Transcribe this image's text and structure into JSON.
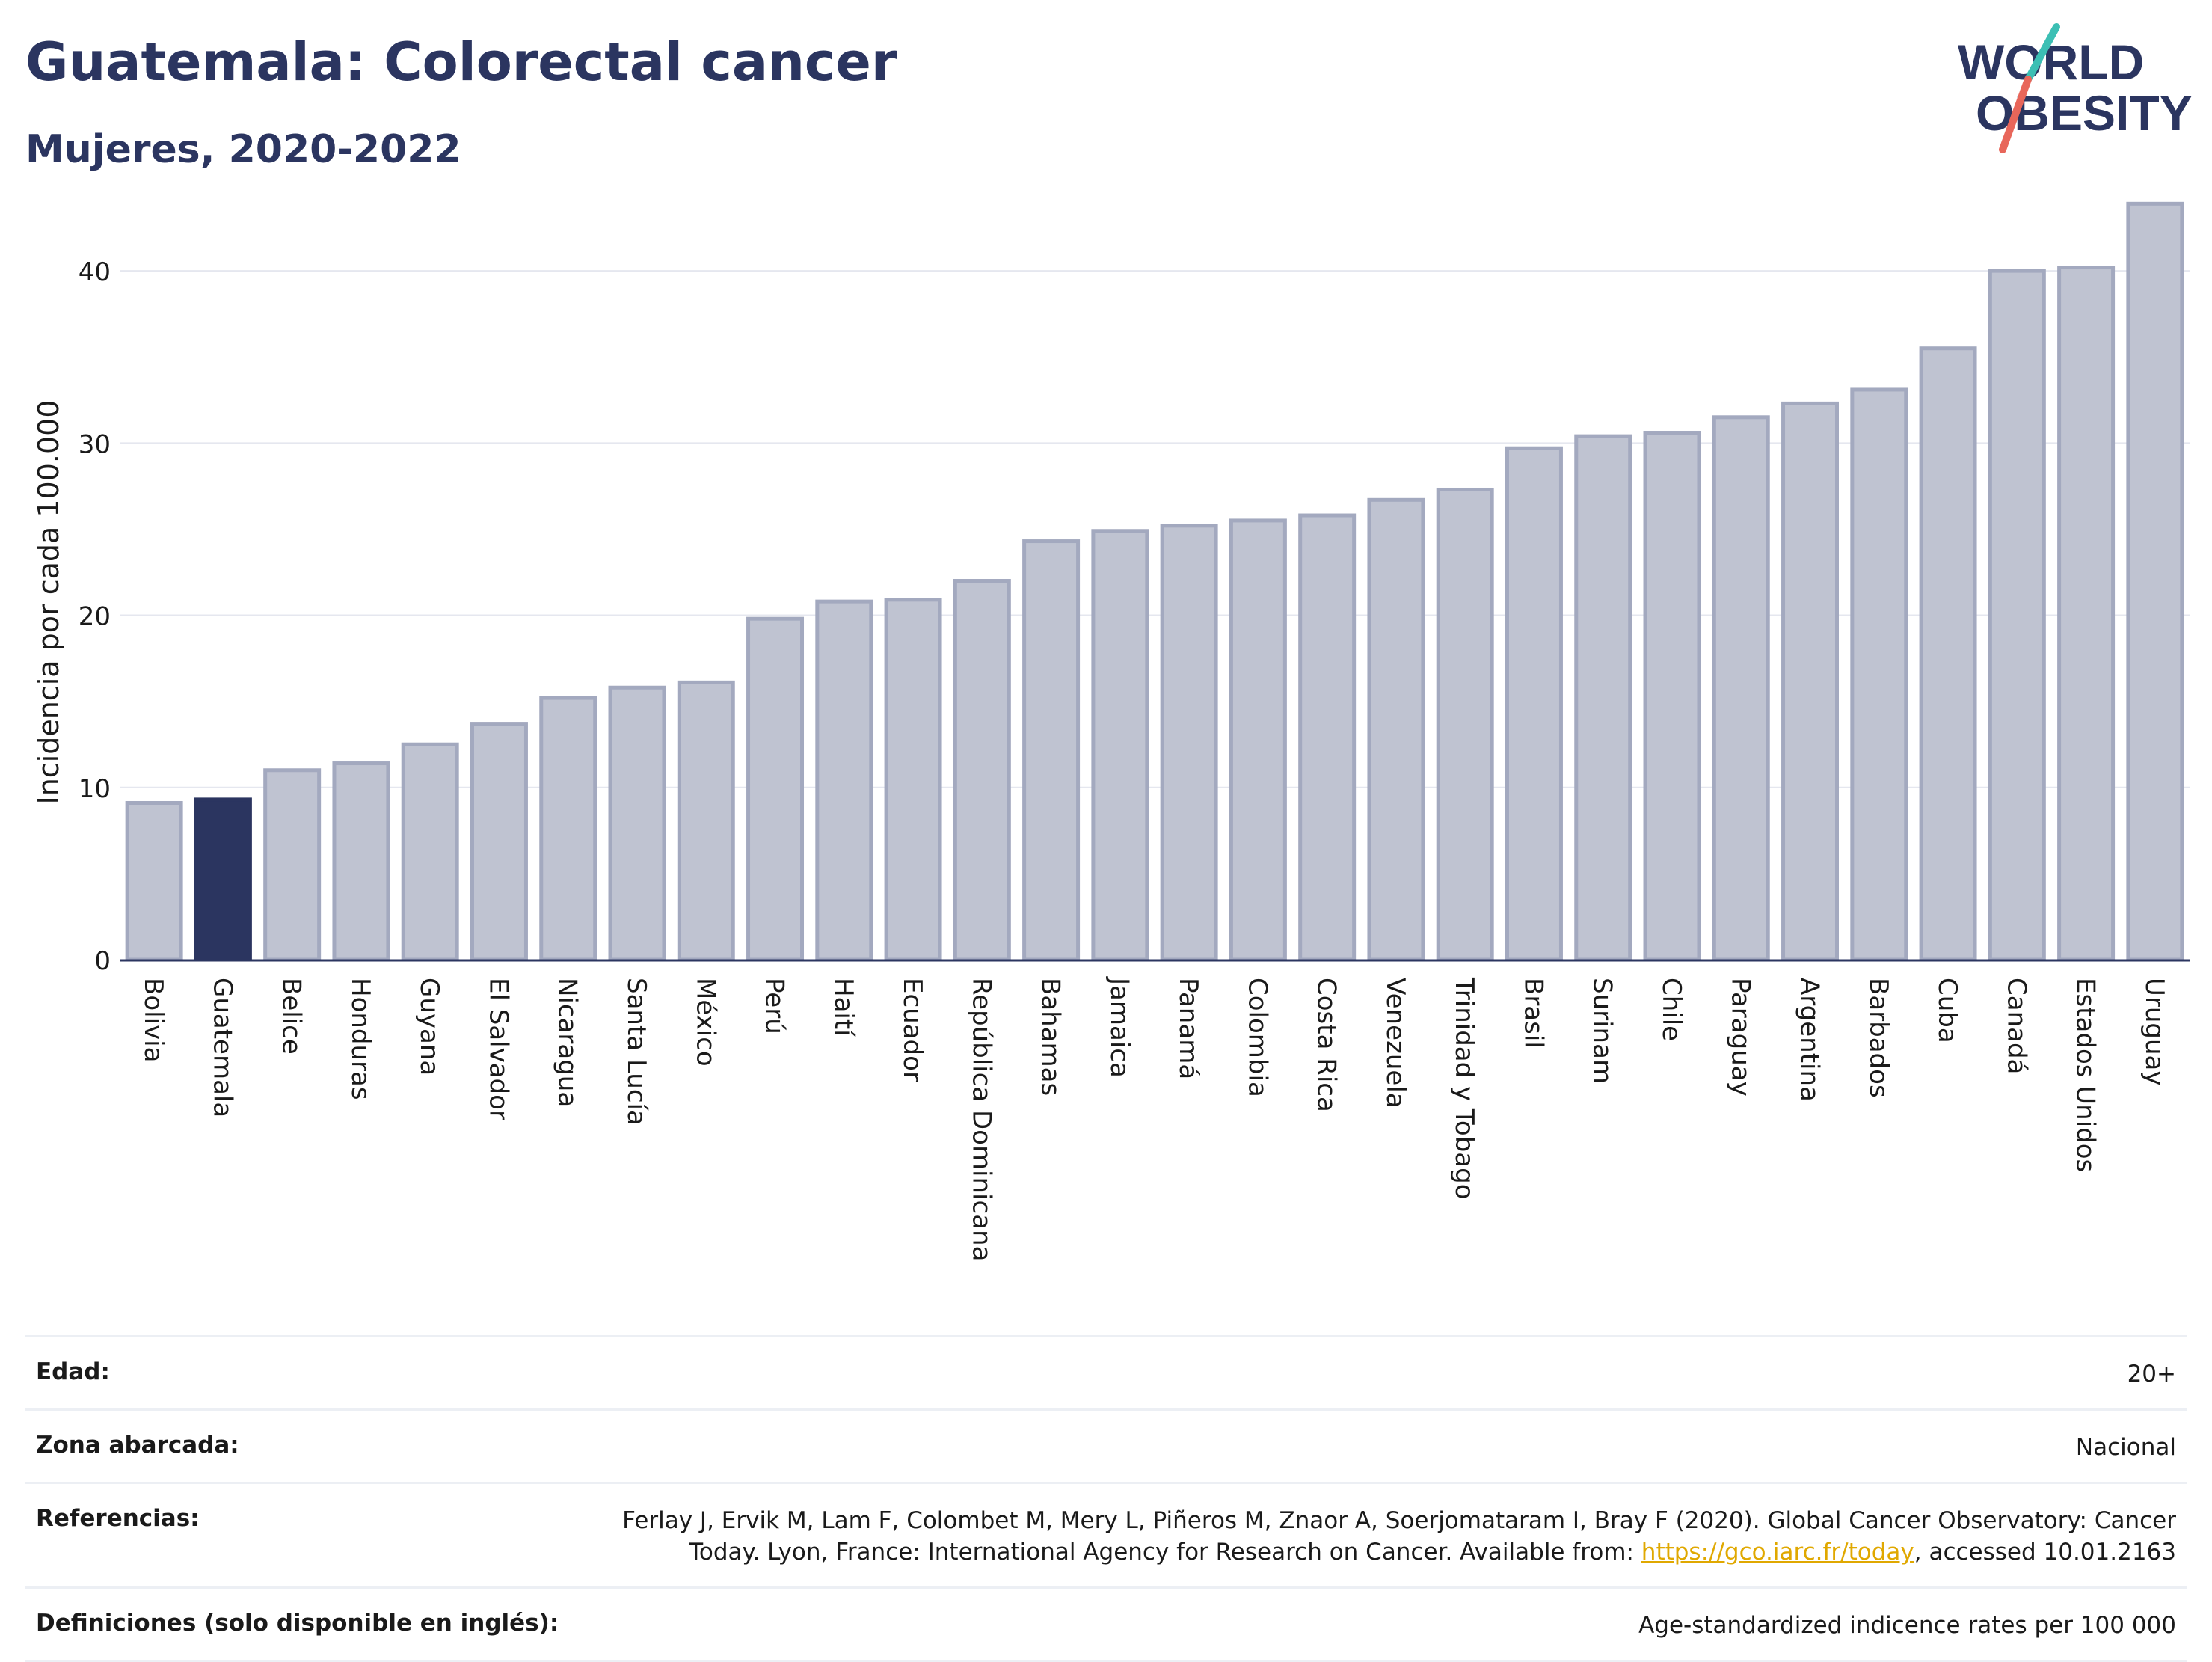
{
  "header": {
    "title": "Guatemala: Colorectal cancer",
    "subtitle": "Mujeres, 2020-2022"
  },
  "logo": {
    "line1": "WORLD",
    "line2": "OBESITY"
  },
  "chart_data": {
    "type": "bar",
    "title": "Guatemala: Colorectal cancer",
    "subtitle": "Mujeres, 2020-2022",
    "ylabel": "Incidencia por cada 100.000",
    "xlabel": "",
    "ylim": [
      0,
      45
    ],
    "yticks": [
      0,
      10,
      20,
      30,
      40
    ],
    "grid": true,
    "highlight": "Guatemala",
    "colors": {
      "bar": "#bfc3d1",
      "bar_border": "#a3a9bf",
      "highlight": "#2b3560",
      "grid": "#e5e7ef",
      "axis": "#2b3560"
    },
    "categories": [
      "Bolivia",
      "Guatemala",
      "Belice",
      "Honduras",
      "Guyana",
      "El Salvador",
      "Nicaragua",
      "Santa Lucía",
      "México",
      "Perú",
      "Haití",
      "Ecuador",
      "República Dominicana",
      "Bahamas",
      "Jamaica",
      "Panamá",
      "Colombia",
      "Costa Rica",
      "Venezuela",
      "Trinidad y Tobago",
      "Brasil",
      "Surinam",
      "Chile",
      "Paraguay",
      "Argentina",
      "Barbados",
      "Cuba",
      "Canadá",
      "Estados Unidos",
      "Uruguay"
    ],
    "values": [
      9.1,
      9.3,
      11.0,
      11.4,
      12.5,
      13.7,
      15.2,
      15.8,
      16.1,
      19.8,
      20.8,
      20.9,
      22.0,
      24.3,
      24.9,
      25.2,
      25.5,
      25.8,
      26.7,
      27.3,
      29.7,
      30.4,
      30.6,
      31.5,
      32.3,
      33.1,
      35.5,
      40.0,
      40.2,
      43.9
    ]
  },
  "details": [
    {
      "label": "Edad:",
      "value": "20+"
    },
    {
      "label": "Zona abarcada:",
      "value": "Nacional"
    },
    {
      "label": "Referencias:",
      "value_pre": "Ferlay J, Ervik M, Lam F, Colombet M, Mery L, Piñeros M, Znaor A, Soerjomataram I, Bray F (2020). Global Cancer Observatory: Cancer Today. Lyon, France: International Agency for Research on Cancer. Available from: ",
      "link": "https://gco.iarc.fr/today",
      "value_post": ", accessed 10.01.2163"
    },
    {
      "label": "Definiciones (solo disponible en inglés):",
      "value": "Age-standardized indicence rates per 100 000"
    }
  ]
}
